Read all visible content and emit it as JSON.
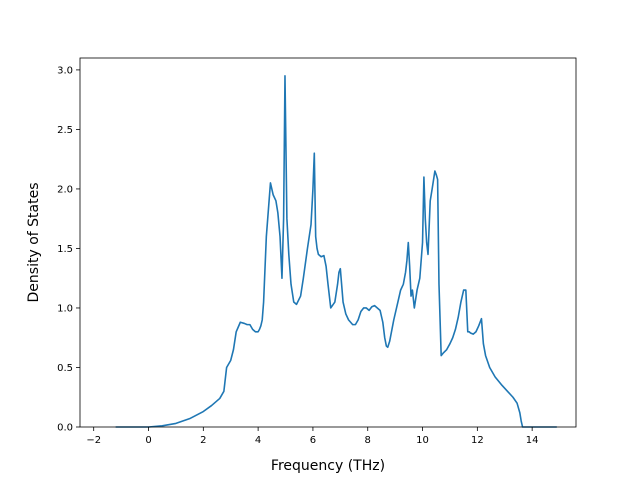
{
  "chart_data": {
    "type": "line",
    "title": "",
    "xlabel": "Frequency (THz)",
    "ylabel": "Density of States",
    "xlim": [
      -2.5,
      15.6
    ],
    "ylim": [
      0.0,
      3.1
    ],
    "x_ticks": [
      -2,
      0,
      2,
      4,
      6,
      8,
      10,
      12,
      14
    ],
    "x_tick_labels": [
      "−2",
      "0",
      "2",
      "4",
      "6",
      "8",
      "10",
      "12",
      "14"
    ],
    "y_ticks": [
      0.0,
      0.5,
      1.0,
      1.5,
      2.0,
      2.5,
      3.0
    ],
    "y_tick_labels": [
      "0.0",
      "0.5",
      "1.0",
      "1.5",
      "2.0",
      "2.5",
      "3.0"
    ],
    "grid": false,
    "legend": "none",
    "series": [
      {
        "color": "#1f77b4",
        "x": [
          -1.2,
          -0.5,
          0.0,
          0.5,
          1.0,
          1.5,
          2.0,
          2.3,
          2.6,
          2.75,
          2.85,
          3.0,
          3.1,
          3.2,
          3.35,
          3.5,
          3.6,
          3.7,
          3.8,
          3.9,
          4.0,
          4.05,
          4.1,
          4.15,
          4.2,
          4.3,
          4.45,
          4.55,
          4.65,
          4.72,
          4.8,
          4.87,
          4.93,
          4.98,
          5.05,
          5.12,
          5.2,
          5.3,
          5.4,
          5.55,
          5.65,
          5.8,
          5.93,
          6.0,
          6.05,
          6.1,
          6.15,
          6.2,
          6.3,
          6.4,
          6.48,
          6.55,
          6.65,
          6.8,
          6.9,
          6.95,
          7.0,
          7.1,
          7.2,
          7.3,
          7.45,
          7.55,
          7.65,
          7.75,
          7.85,
          7.95,
          8.05,
          8.15,
          8.25,
          8.35,
          8.45,
          8.55,
          8.62,
          8.68,
          8.73,
          8.8,
          8.95,
          9.1,
          9.2,
          9.3,
          9.38,
          9.43,
          9.48,
          9.53,
          9.58,
          9.63,
          9.7,
          9.8,
          9.9,
          10.0,
          10.05,
          10.1,
          10.15,
          10.2,
          10.28,
          10.35,
          10.45,
          10.5,
          10.55,
          10.6,
          10.68,
          10.75,
          10.88,
          11.0,
          11.1,
          11.2,
          11.3,
          11.4,
          11.5,
          11.58,
          11.65,
          11.7,
          11.75,
          11.85,
          11.95,
          12.05,
          12.15,
          12.22,
          12.3,
          12.45,
          12.65,
          12.9,
          13.1,
          13.3,
          13.45,
          13.55,
          13.6,
          13.65,
          13.75,
          14.0,
          14.5,
          14.9
        ],
        "y": [
          0.0,
          0.0,
          0.0,
          0.01,
          0.03,
          0.07,
          0.13,
          0.18,
          0.24,
          0.3,
          0.5,
          0.56,
          0.65,
          0.8,
          0.88,
          0.87,
          0.86,
          0.86,
          0.82,
          0.8,
          0.8,
          0.82,
          0.85,
          0.9,
          1.05,
          1.6,
          2.05,
          1.95,
          1.9,
          1.8,
          1.6,
          1.25,
          1.75,
          2.95,
          1.75,
          1.45,
          1.2,
          1.05,
          1.03,
          1.1,
          1.25,
          1.5,
          1.7,
          2.0,
          2.3,
          1.6,
          1.5,
          1.45,
          1.43,
          1.44,
          1.35,
          1.2,
          1.0,
          1.05,
          1.2,
          1.3,
          1.33,
          1.05,
          0.95,
          0.9,
          0.86,
          0.86,
          0.9,
          0.97,
          1.0,
          1.0,
          0.98,
          1.01,
          1.02,
          1.0,
          0.98,
          0.88,
          0.75,
          0.68,
          0.67,
          0.72,
          0.9,
          1.05,
          1.15,
          1.2,
          1.3,
          1.4,
          1.55,
          1.35,
          1.1,
          1.15,
          1.0,
          1.15,
          1.25,
          1.55,
          2.1,
          1.75,
          1.55,
          1.45,
          1.9,
          2.0,
          2.15,
          2.12,
          2.08,
          1.2,
          0.6,
          0.62,
          0.65,
          0.7,
          0.75,
          0.82,
          0.92,
          1.05,
          1.15,
          1.15,
          0.8,
          0.8,
          0.79,
          0.78,
          0.8,
          0.85,
          0.91,
          0.7,
          0.6,
          0.5,
          0.42,
          0.35,
          0.3,
          0.25,
          0.2,
          0.12,
          0.05,
          0.0,
          0.0,
          0.0,
          0.0,
          0.0
        ]
      }
    ]
  }
}
